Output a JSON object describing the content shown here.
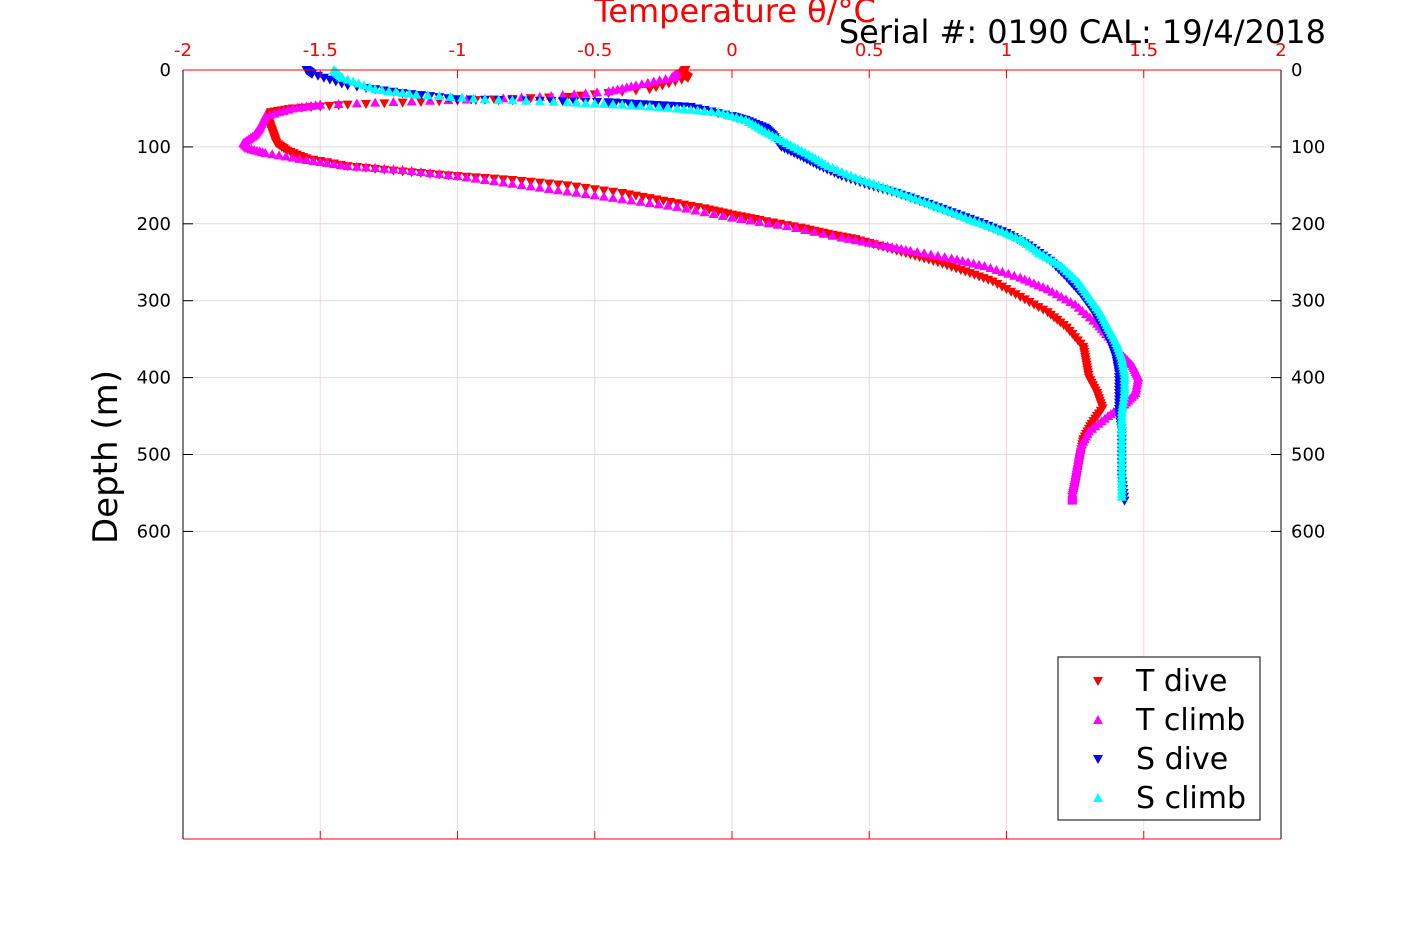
{
  "chart_data": {
    "type": "scatter",
    "title": "Temperature θ/°C",
    "serial_label": "Serial #: 0190  CAL: 19/4/2018",
    "xlabel": "Temperature θ/°C",
    "ylabel": "Depth (m)",
    "xlim": [
      -2,
      2
    ],
    "ylim": [
      0,
      1000
    ],
    "y_reversed": true,
    "x_ticks": [
      "-2",
      "-1.5",
      "-1",
      "-0.5",
      "0",
      "0.5",
      "1",
      "1.5",
      "2"
    ],
    "y_ticks": [
      "0",
      "100",
      "200",
      "300",
      "400",
      "500",
      "600"
    ],
    "grid": true,
    "legend_position": "bottom-right",
    "series": [
      {
        "name": "T dive",
        "color": "#ff0000",
        "marker": "triangle-down",
        "points": [
          [
            -0.17,
            0
          ],
          [
            -0.18,
            5
          ],
          [
            -0.16,
            10
          ],
          [
            -0.3,
            25
          ],
          [
            -0.6,
            35
          ],
          [
            -1.0,
            40
          ],
          [
            -1.4,
            45
          ],
          [
            -1.6,
            50
          ],
          [
            -1.68,
            55
          ],
          [
            -1.69,
            65
          ],
          [
            -1.68,
            75
          ],
          [
            -1.67,
            85
          ],
          [
            -1.66,
            95
          ],
          [
            -1.62,
            105
          ],
          [
            -1.55,
            115
          ],
          [
            -1.4,
            125
          ],
          [
            -1.2,
            132
          ],
          [
            -1.0,
            138
          ],
          [
            -0.8,
            143
          ],
          [
            -0.6,
            150
          ],
          [
            -0.4,
            160
          ],
          [
            -0.25,
            170
          ],
          [
            -0.1,
            180
          ],
          [
            0.0,
            188
          ],
          [
            0.1,
            195
          ],
          [
            0.25,
            205
          ],
          [
            0.35,
            213
          ],
          [
            0.45,
            220
          ],
          [
            0.55,
            230
          ],
          [
            0.65,
            240
          ],
          [
            0.75,
            250
          ],
          [
            0.85,
            262
          ],
          [
            0.95,
            275
          ],
          [
            1.05,
            295
          ],
          [
            1.15,
            315
          ],
          [
            1.22,
            335
          ],
          [
            1.28,
            360
          ],
          [
            1.29,
            380
          ],
          [
            1.3,
            400
          ],
          [
            1.33,
            420
          ],
          [
            1.35,
            440
          ],
          [
            1.31,
            460
          ],
          [
            1.28,
            480
          ],
          [
            1.27,
            500
          ],
          [
            1.26,
            520
          ],
          [
            1.25,
            540
          ],
          [
            1.24,
            555
          ]
        ]
      },
      {
        "name": "T climb",
        "color": "#ff00ff",
        "marker": "triangle-up",
        "points": [
          [
            -0.2,
            5
          ],
          [
            -0.22,
            10
          ],
          [
            -0.35,
            20
          ],
          [
            -0.45,
            28
          ],
          [
            -0.7,
            35
          ],
          [
            -1.1,
            40
          ],
          [
            -1.5,
            45
          ],
          [
            -1.6,
            50
          ],
          [
            -1.7,
            60
          ],
          [
            -1.72,
            75
          ],
          [
            -1.74,
            85
          ],
          [
            -1.78,
            95
          ],
          [
            -1.76,
            102
          ],
          [
            -1.7,
            108
          ],
          [
            -1.55,
            117
          ],
          [
            -1.4,
            125
          ],
          [
            -1.2,
            130
          ],
          [
            -1.0,
            138
          ],
          [
            -0.8,
            148
          ],
          [
            -0.6,
            158
          ],
          [
            -0.4,
            168
          ],
          [
            -0.2,
            178
          ],
          [
            0.0,
            192
          ],
          [
            0.2,
            203
          ],
          [
            0.4,
            218
          ],
          [
            0.55,
            228
          ],
          [
            0.65,
            235
          ],
          [
            0.8,
            245
          ],
          [
            0.92,
            255
          ],
          [
            1.05,
            270
          ],
          [
            1.15,
            285
          ],
          [
            1.25,
            305
          ],
          [
            1.33,
            330
          ],
          [
            1.38,
            350
          ],
          [
            1.42,
            370
          ],
          [
            1.46,
            385
          ],
          [
            1.48,
            400
          ],
          [
            1.47,
            420
          ],
          [
            1.43,
            435
          ],
          [
            1.37,
            450
          ],
          [
            1.3,
            470
          ],
          [
            1.27,
            490
          ],
          [
            1.26,
            510
          ],
          [
            1.25,
            530
          ],
          [
            1.24,
            550
          ],
          [
            1.24,
            560
          ]
        ]
      },
      {
        "name": "S dive",
        "color": "#0000ff",
        "marker": "triangle-down",
        "points": [
          [
            -1.55,
            0
          ],
          [
            -1.53,
            5
          ],
          [
            -1.4,
            20
          ],
          [
            -1.2,
            30
          ],
          [
            -1.0,
            38
          ],
          [
            -0.7,
            40
          ],
          [
            -0.45,
            42
          ],
          [
            -0.3,
            45
          ],
          [
            -0.15,
            48
          ],
          [
            0.0,
            60
          ],
          [
            0.05,
            65
          ],
          [
            0.12,
            75
          ],
          [
            0.15,
            85
          ],
          [
            0.18,
            100
          ],
          [
            0.25,
            112
          ],
          [
            0.32,
            125
          ],
          [
            0.4,
            138
          ],
          [
            0.5,
            150
          ],
          [
            0.6,
            160
          ],
          [
            0.7,
            172
          ],
          [
            0.8,
            185
          ],
          [
            0.9,
            198
          ],
          [
            1.0,
            212
          ],
          [
            1.08,
            228
          ],
          [
            1.16,
            248
          ],
          [
            1.22,
            270
          ],
          [
            1.27,
            290
          ],
          [
            1.31,
            310
          ],
          [
            1.35,
            335
          ],
          [
            1.38,
            355
          ],
          [
            1.4,
            375
          ],
          [
            1.41,
            395
          ],
          [
            1.41,
            420
          ],
          [
            1.41,
            445
          ],
          [
            1.42,
            470
          ],
          [
            1.42,
            500
          ],
          [
            1.42,
            530
          ],
          [
            1.43,
            560
          ]
        ]
      },
      {
        "name": "S climb",
        "color": "#00ffff",
        "marker": "triangle-up",
        "points": [
          [
            -1.45,
            0
          ],
          [
            -1.42,
            10
          ],
          [
            -1.3,
            25
          ],
          [
            -1.15,
            32
          ],
          [
            -0.9,
            38
          ],
          [
            -0.6,
            42
          ],
          [
            -0.4,
            45
          ],
          [
            -0.2,
            50
          ],
          [
            -0.05,
            55
          ],
          [
            0.05,
            65
          ],
          [
            0.12,
            80
          ],
          [
            0.2,
            95
          ],
          [
            0.28,
            110
          ],
          [
            0.35,
            125
          ],
          [
            0.45,
            140
          ],
          [
            0.55,
            152
          ],
          [
            0.65,
            165
          ],
          [
            0.75,
            178
          ],
          [
            0.85,
            192
          ],
          [
            0.95,
            205
          ],
          [
            1.05,
            220
          ],
          [
            1.12,
            238
          ],
          [
            1.2,
            255
          ],
          [
            1.26,
            275
          ],
          [
            1.3,
            295
          ],
          [
            1.34,
            315
          ],
          [
            1.37,
            335
          ],
          [
            1.4,
            355
          ],
          [
            1.42,
            375
          ],
          [
            1.43,
            395
          ],
          [
            1.43,
            420
          ],
          [
            1.42,
            445
          ],
          [
            1.42,
            470
          ],
          [
            1.42,
            500
          ],
          [
            1.42,
            530
          ],
          [
            1.42,
            555
          ]
        ]
      }
    ]
  }
}
